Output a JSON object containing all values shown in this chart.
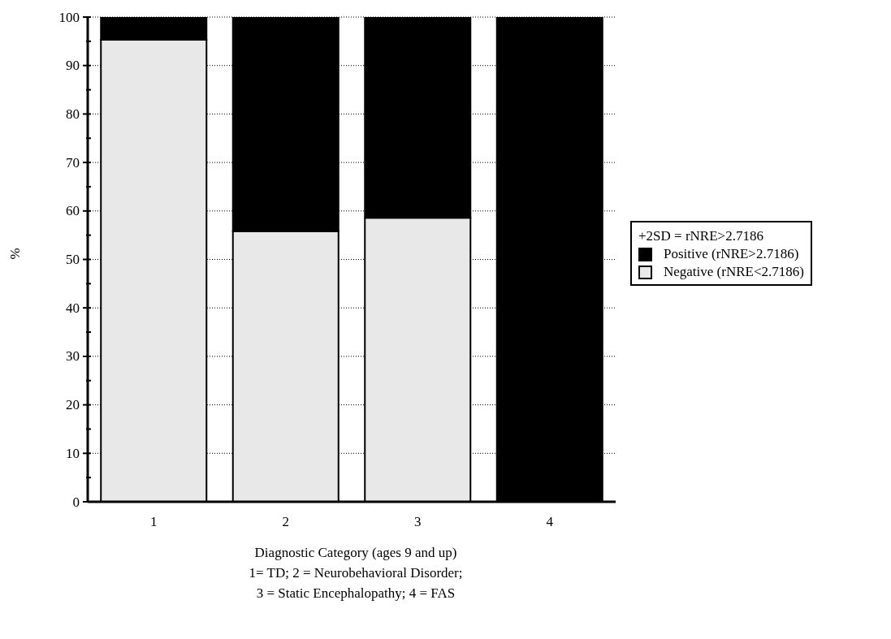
{
  "chart_data": {
    "type": "bar",
    "stacked": true,
    "xlabel": "Diagnostic Category (ages 9 and up)\n1= TD; 2 = Neurobehavioral Disorder;\n3 = Static Encephalopathy; 4 = FAS",
    "ylabel": "%",
    "legend_title": "+2SD = rNRE>2.7186",
    "categories": [
      "1",
      "2",
      "3",
      "4"
    ],
    "series": [
      {
        "name": "Negative (rNRE<2.7186)",
        "color": "#e8e8e8",
        "values": [
          95.3,
          55.8,
          58.6,
          0
        ]
      },
      {
        "name": "Positive (rNRE>2.7186)",
        "color": "#000000",
        "values": [
          4.7,
          44.2,
          41.4,
          100
        ]
      }
    ],
    "ylim": [
      0,
      100
    ],
    "yticks": [
      0,
      {
        "value": 5,
        "label": null
      },
      10,
      {
        "value": 15,
        "label": null
      },
      20,
      {
        "value": 25,
        "label": null
      },
      30,
      {
        "value": 35,
        "label": null
      },
      40,
      {
        "value": 45,
        "label": null
      },
      50,
      {
        "value": 55,
        "label": null
      },
      60,
      {
        "value": 65,
        "label": null
      },
      70,
      {
        "value": 75,
        "label": null
      },
      80,
      {
        "value": 85,
        "label": null
      },
      90,
      {
        "value": 95,
        "label": null
      },
      100
    ],
    "grid": "y",
    "legend": "right"
  }
}
